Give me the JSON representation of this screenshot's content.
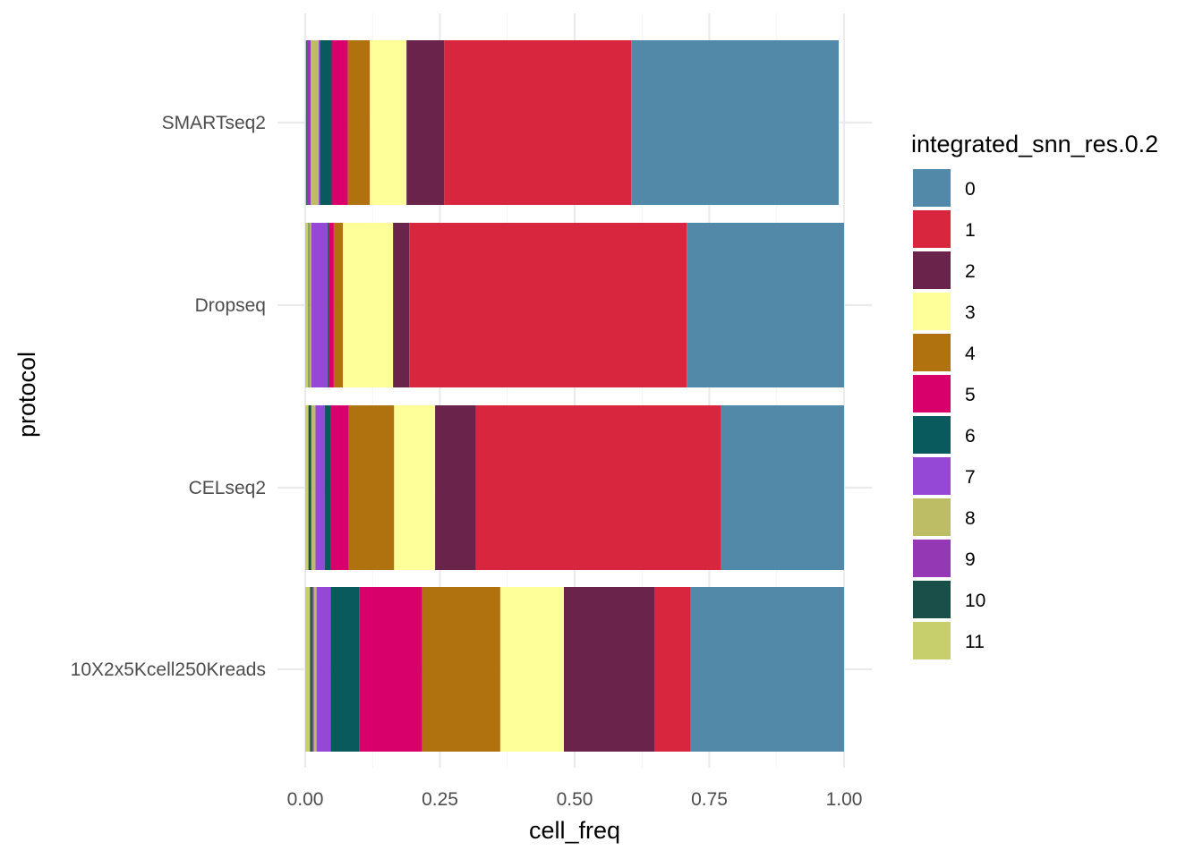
{
  "chart_data": {
    "type": "bar",
    "orientation": "horizontal",
    "stacked": true,
    "xlabel": "cell_freq",
    "ylabel": "protocol",
    "xlim": [
      0,
      1
    ],
    "x_ticks": [
      "0.00",
      "0.25",
      "0.50",
      "0.75",
      "1.00"
    ],
    "x_tick_values": [
      0,
      0.25,
      0.5,
      0.75,
      1.0
    ],
    "grid": true,
    "legend_position": "right",
    "legend_title": "integrated_snn_res.0.2",
    "categories": [
      "SMARTseq2",
      "Dropseq",
      "CELseq2",
      "10X2x5Kcell250Kreads"
    ],
    "stack_order": [
      "11",
      "10",
      "9",
      "8",
      "7",
      "6",
      "5",
      "4",
      "3",
      "2",
      "1",
      "0"
    ],
    "series": [
      {
        "name": "0",
        "color": "#5389A8",
        "values": [
          0.385,
          0.292,
          0.228,
          0.285
        ]
      },
      {
        "name": "1",
        "color": "#D7263D",
        "values": [
          0.347,
          0.515,
          0.455,
          0.066
        ]
      },
      {
        "name": "2",
        "color": "#6A234A",
        "values": [
          0.07,
          0.03,
          0.076,
          0.169
        ]
      },
      {
        "name": "3",
        "color": "#FFFF99",
        "values": [
          0.068,
          0.093,
          0.076,
          0.118
        ]
      },
      {
        "name": "4",
        "color": "#B0720F",
        "values": [
          0.041,
          0.017,
          0.084,
          0.145
        ]
      },
      {
        "name": "5",
        "color": "#D8006A",
        "values": [
          0.03,
          0.01,
          0.033,
          0.117
        ]
      },
      {
        "name": "6",
        "color": "#085A5C",
        "values": [
          0.022,
          0.002,
          0.012,
          0.053
        ]
      },
      {
        "name": "7",
        "color": "#9547D6",
        "values": [
          0.002,
          0.03,
          0.017,
          0.026
        ]
      },
      {
        "name": "8",
        "color": "#BDBD66",
        "values": [
          0.015,
          0.003,
          0.007,
          0.005
        ]
      },
      {
        "name": "9",
        "color": "#9438B4",
        "values": [
          0.006,
          0.001,
          0.002,
          0.003
        ]
      },
      {
        "name": "10",
        "color": "#1A4E48",
        "values": [
          0.002,
          0.001,
          0.004,
          0.004
        ]
      },
      {
        "name": "11",
        "color": "#C6CF6C",
        "values": [
          0.002,
          0.006,
          0.006,
          0.009
        ]
      }
    ]
  }
}
